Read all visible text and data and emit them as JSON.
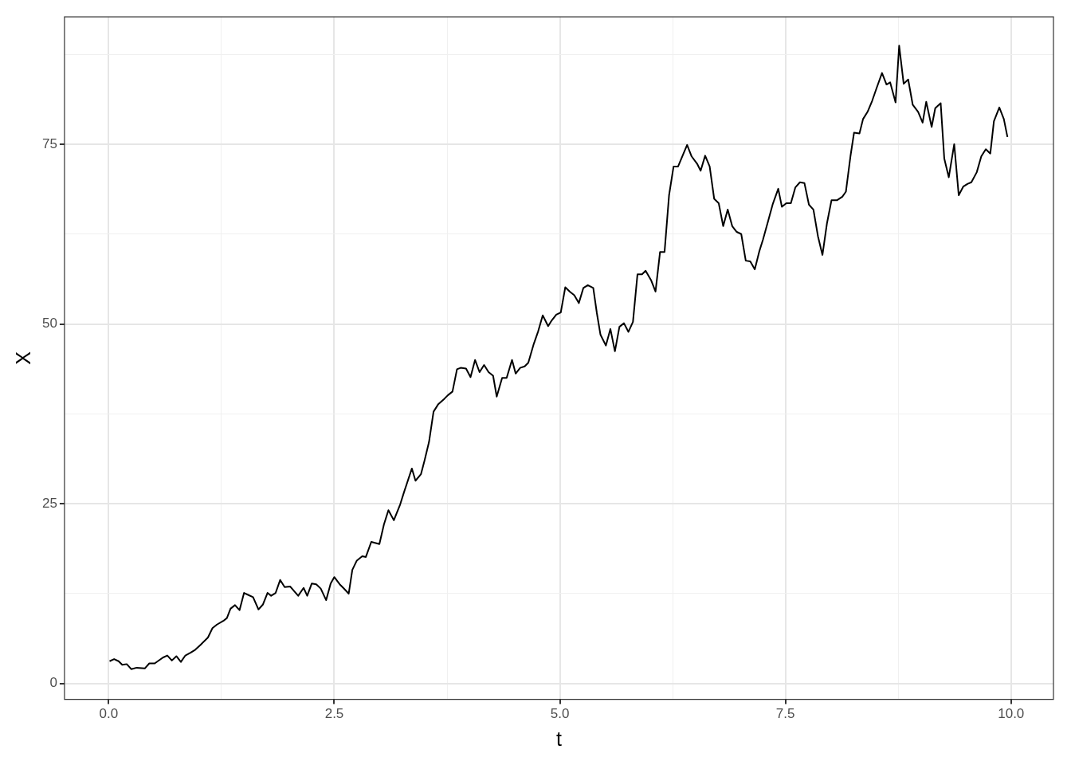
{
  "chart_data": {
    "type": "line",
    "xlabel": "t",
    "ylabel": "X",
    "xlim": [
      -0.49,
      10.47
    ],
    "ylim": [
      -2.2,
      92.7
    ],
    "xticks": [
      {
        "value": 0,
        "label": "0.0"
      },
      {
        "value": 1.25,
        "label": null
      },
      {
        "value": 2.5,
        "label": "2.5"
      },
      {
        "value": 3.75,
        "label": null
      },
      {
        "value": 5,
        "label": "5.0"
      },
      {
        "value": 6.25,
        "label": null
      },
      {
        "value": 7.5,
        "label": "7.5"
      },
      {
        "value": 8.75,
        "label": null
      },
      {
        "value": 10,
        "label": "10.0"
      }
    ],
    "yticks": [
      0,
      {
        "value": 12.5,
        "label": null
      },
      25,
      {
        "value": 37.5,
        "label": null
      },
      50,
      {
        "value": 62.5,
        "label": null
      },
      75,
      {
        "value": 87.5,
        "label": null
      }
    ],
    "grid": true,
    "legend": false,
    "marker": "none",
    "line_style": "solid",
    "series": [
      {
        "color": "#000000",
        "x": [
          0.01,
          0.06,
          0.11,
          0.15,
          0.2,
          0.25,
          0.31,
          0.4,
          0.45,
          0.51,
          0.6,
          0.65,
          0.7,
          0.75,
          0.8,
          0.85,
          0.91,
          0.96,
          1.02,
          1.1,
          1.15,
          1.2,
          1.27,
          1.31,
          1.35,
          1.4,
          1.45,
          1.5,
          1.55,
          1.6,
          1.66,
          1.71,
          1.76,
          1.8,
          1.85,
          1.9,
          1.95,
          2.01,
          2.1,
          2.16,
          2.2,
          2.25,
          2.3,
          2.35,
          2.41,
          2.46,
          2.5,
          2.56,
          2.6,
          2.66,
          2.7,
          2.75,
          2.81,
          2.85,
          2.91,
          3,
          3.05,
          3.1,
          3.16,
          3.23,
          3.27,
          3.36,
          3.4,
          3.46,
          3.5,
          3.55,
          3.6,
          3.65,
          3.72,
          3.76,
          3.81,
          3.86,
          3.9,
          3.96,
          4.01,
          4.06,
          4.11,
          4.16,
          4.21,
          4.26,
          4.3,
          4.36,
          4.41,
          4.47,
          4.51,
          4.56,
          4.61,
          4.65,
          4.71,
          4.76,
          4.81,
          4.87,
          4.91,
          4.96,
          5.01,
          5.06,
          5.11,
          5.16,
          5.21,
          5.26,
          5.31,
          5.37,
          5.41,
          5.45,
          5.51,
          5.56,
          5.61,
          5.66,
          5.71,
          5.76,
          5.81,
          5.86,
          5.91,
          5.95,
          6.01,
          6.06,
          6.11,
          6.16,
          6.21,
          6.26,
          6.31,
          6.36,
          6.41,
          6.46,
          6.52,
          6.56,
          6.61,
          6.66,
          6.71,
          6.76,
          6.81,
          6.86,
          6.91,
          6.96,
          7.01,
          7.06,
          7.11,
          7.16,
          7.21,
          7.25,
          7.31,
          7.36,
          7.42,
          7.46,
          7.51,
          7.56,
          7.61,
          7.66,
          7.71,
          7.76,
          7.81,
          7.86,
          7.91,
          7.96,
          8.01,
          8.07,
          8.13,
          8.17,
          8.22,
          8.26,
          8.32,
          8.36,
          8.41,
          8.46,
          8.51,
          8.57,
          8.62,
          8.66,
          8.72,
          8.76,
          8.81,
          8.86,
          8.91,
          8.97,
          9.02,
          9.06,
          9.12,
          9.16,
          9.22,
          9.26,
          9.31,
          9.37,
          9.42,
          9.47,
          9.52,
          9.56,
          9.62,
          9.67,
          9.72,
          9.77,
          9.81,
          9.87,
          9.92,
          9.96
        ],
        "values": [
          3.1,
          3.4,
          3.1,
          2.6,
          2.7,
          2.0,
          2.2,
          2.1,
          2.8,
          2.8,
          3.6,
          3.9,
          3.2,
          3.8,
          3.0,
          3.9,
          4.3,
          4.7,
          5.4,
          6.4,
          7.7,
          8.2,
          8.7,
          9.1,
          10.4,
          10.9,
          10.2,
          12.6,
          12.3,
          12.0,
          10.3,
          11.0,
          12.6,
          12.2,
          12.6,
          14.4,
          13.4,
          13.5,
          12.2,
          13.3,
          12.2,
          13.9,
          13.8,
          13.2,
          11.6,
          13.9,
          14.8,
          13.8,
          13.3,
          12.5,
          15.8,
          17.1,
          17.7,
          17.6,
          19.7,
          19.4,
          22.1,
          24.1,
          22.7,
          24.9,
          26.5,
          29.9,
          28.2,
          29.1,
          31.0,
          33.6,
          37.8,
          38.8,
          39.6,
          40.1,
          40.6,
          43.7,
          43.9,
          43.8,
          42.6,
          45.0,
          43.3,
          44.3,
          43.3,
          42.8,
          39.9,
          42.5,
          42.5,
          45.0,
          43.1,
          43.9,
          44.1,
          44.6,
          47.2,
          49.0,
          51.2,
          49.7,
          50.5,
          51.3,
          51.6,
          55.1,
          54.5,
          54.0,
          52.9,
          55.0,
          55.4,
          55.0,
          51.5,
          48.5,
          47.0,
          49.3,
          46.2,
          49.6,
          50.1,
          48.9,
          50.3,
          56.9,
          56.9,
          57.4,
          56.1,
          54.5,
          60.0,
          60.0,
          67.9,
          71.9,
          71.9,
          73.4,
          74.9,
          73.3,
          72.3,
          71.3,
          73.4,
          71.9,
          67.4,
          66.8,
          63.6,
          65.9,
          63.6,
          62.8,
          62.5,
          58.8,
          58.7,
          57.6,
          60.1,
          61.7,
          64.4,
          66.7,
          68.8,
          66.3,
          66.8,
          66.8,
          69.0,
          69.7,
          69.6,
          66.6,
          65.9,
          62.2,
          59.6,
          64.0,
          67.2,
          67.2,
          67.7,
          68.4,
          73.3,
          76.6,
          76.5,
          78.5,
          79.5,
          81.0,
          82.8,
          84.9,
          83.3,
          83.6,
          80.8,
          88.7,
          83.4,
          84.0,
          80.5,
          79.5,
          78.0,
          80.9,
          77.4,
          80.0,
          80.7,
          73.0,
          70.4,
          75.0,
          67.9,
          69.1,
          69.5,
          69.7,
          71.1,
          73.3,
          74.3,
          73.7,
          78.2,
          80.1,
          78.5,
          76.0
        ]
      }
    ]
  }
}
